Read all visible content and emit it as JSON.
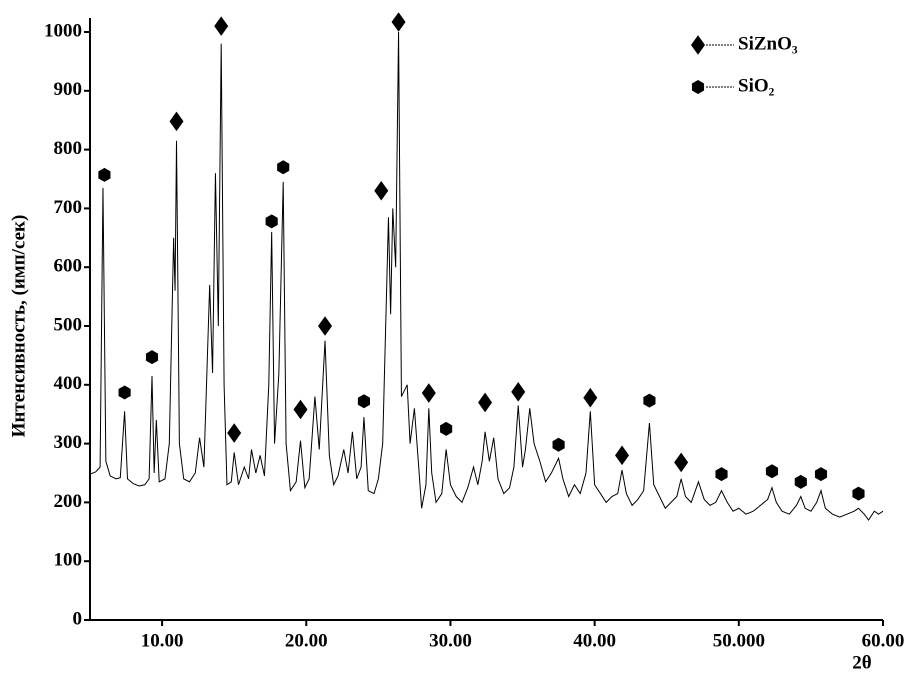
{
  "chart_data": {
    "type": "line",
    "x_label": "2θ",
    "y_label": "Интенсивность, (имп/сек)",
    "xlim": [
      5,
      60
    ],
    "ylim": [
      0,
      1000
    ],
    "xticks": [
      {
        "value": 10,
        "label": "10.00"
      },
      {
        "value": 20,
        "label": "20.00"
      },
      {
        "value": 30,
        "label": "30.00"
      },
      {
        "value": 40,
        "label": "40.00"
      },
      {
        "value": 50,
        "label": "50.000"
      },
      {
        "value": 60,
        "label": "60.00"
      }
    ],
    "yticks": [
      0,
      100,
      200,
      300,
      400,
      500,
      600,
      700,
      800,
      900,
      1000
    ],
    "legend": "top-right",
    "series": [
      {
        "color": "#000000",
        "style": "line",
        "x": [
          5.0,
          5.4,
          5.7,
          5.9,
          6.1,
          6.4,
          6.8,
          7.1,
          7.4,
          7.6,
          8.0,
          8.4,
          8.8,
          9.1,
          9.3,
          9.45,
          9.6,
          9.8,
          10.2,
          10.5,
          10.8,
          10.9,
          11.0,
          11.2,
          11.5,
          11.9,
          12.3,
          12.6,
          12.9,
          13.3,
          13.5,
          13.7,
          13.9,
          14.1,
          14.3,
          14.5,
          14.8,
          15.0,
          15.3,
          15.7,
          16.0,
          16.2,
          16.5,
          16.8,
          17.1,
          17.4,
          17.6,
          17.8,
          18.1,
          18.4,
          18.6,
          18.9,
          19.3,
          19.6,
          19.9,
          20.2,
          20.6,
          20.9,
          21.3,
          21.6,
          21.9,
          22.2,
          22.6,
          22.9,
          23.2,
          23.5,
          23.8,
          24.0,
          24.3,
          24.7,
          25.0,
          25.3,
          25.7,
          25.85,
          26.0,
          26.2,
          26.4,
          26.6,
          27.0,
          27.2,
          27.5,
          27.8,
          28.0,
          28.3,
          28.5,
          28.7,
          29.0,
          29.4,
          29.7,
          30.0,
          30.4,
          30.8,
          31.2,
          31.6,
          31.9,
          32.2,
          32.4,
          32.7,
          33.0,
          33.3,
          33.7,
          34.1,
          34.4,
          34.7,
          35.0,
          35.2,
          35.5,
          35.8,
          36.2,
          36.6,
          37.0,
          37.5,
          37.8,
          38.2,
          38.6,
          39.0,
          39.4,
          39.7,
          40.0,
          40.4,
          40.8,
          41.2,
          41.6,
          41.9,
          42.2,
          42.6,
          43.0,
          43.4,
          43.8,
          44.1,
          44.5,
          44.9,
          45.3,
          45.7,
          46.0,
          46.3,
          46.7,
          47.2,
          47.6,
          48.0,
          48.4,
          48.8,
          49.2,
          49.6,
          50.0,
          50.5,
          51.0,
          51.5,
          52.0,
          52.3,
          52.6,
          53.0,
          53.5,
          54.0,
          54.3,
          54.6,
          55.0,
          55.4,
          55.7,
          56.0,
          56.5,
          57.0,
          57.5,
          58.0,
          58.3,
          58.7,
          59.0,
          59.4,
          59.7,
          60.0
        ],
        "values": [
          248,
          252,
          260,
          735,
          270,
          245,
          240,
          242,
          355,
          240,
          232,
          228,
          230,
          240,
          415,
          250,
          340,
          235,
          240,
          300,
          650,
          560,
          815,
          300,
          240,
          235,
          250,
          310,
          260,
          570,
          420,
          760,
          500,
          980,
          400,
          230,
          235,
          285,
          230,
          260,
          240,
          290,
          250,
          280,
          245,
          400,
          660,
          300,
          420,
          745,
          300,
          220,
          235,
          305,
          225,
          240,
          380,
          290,
          475,
          280,
          230,
          245,
          290,
          250,
          320,
          240,
          260,
          345,
          220,
          215,
          240,
          300,
          685,
          520,
          700,
          600,
          1000,
          380,
          400,
          300,
          360,
          260,
          190,
          230,
          360,
          250,
          200,
          215,
          290,
          230,
          210,
          200,
          225,
          260,
          230,
          270,
          320,
          270,
          310,
          240,
          215,
          225,
          260,
          365,
          260,
          290,
          360,
          300,
          270,
          235,
          250,
          275,
          240,
          210,
          230,
          215,
          250,
          355,
          230,
          215,
          200,
          210,
          215,
          255,
          215,
          195,
          205,
          220,
          335,
          230,
          210,
          190,
          200,
          210,
          240,
          210,
          200,
          235,
          205,
          195,
          200,
          220,
          200,
          185,
          190,
          180,
          185,
          195,
          205,
          225,
          200,
          185,
          180,
          195,
          210,
          190,
          185,
          200,
          220,
          190,
          180,
          175,
          180,
          185,
          190,
          180,
          170,
          185,
          180,
          185
        ]
      },
      {
        "name": "SiZnO₃",
        "color": "#000000",
        "style": "diamond",
        "x": [
          11.0,
          14.1,
          15.0,
          19.6,
          21.3,
          25.2,
          26.4,
          28.5,
          32.4,
          34.7,
          39.7,
          41.9,
          46.0
        ],
        "values": [
          848,
          1010,
          318,
          358,
          500,
          730,
          1017,
          386,
          370,
          388,
          378,
          280,
          268
        ]
      },
      {
        "name": "SiO₂",
        "color": "#000000",
        "style": "hexagon",
        "x": [
          6.0,
          7.4,
          9.3,
          17.6,
          18.4,
          24.0,
          29.7,
          37.5,
          43.8,
          48.8,
          52.3,
          54.3,
          55.7,
          58.3
        ],
        "values": [
          757,
          387,
          447,
          678,
          770,
          372,
          325,
          298,
          373,
          248,
          253,
          235,
          248,
          215
        ]
      }
    ]
  }
}
